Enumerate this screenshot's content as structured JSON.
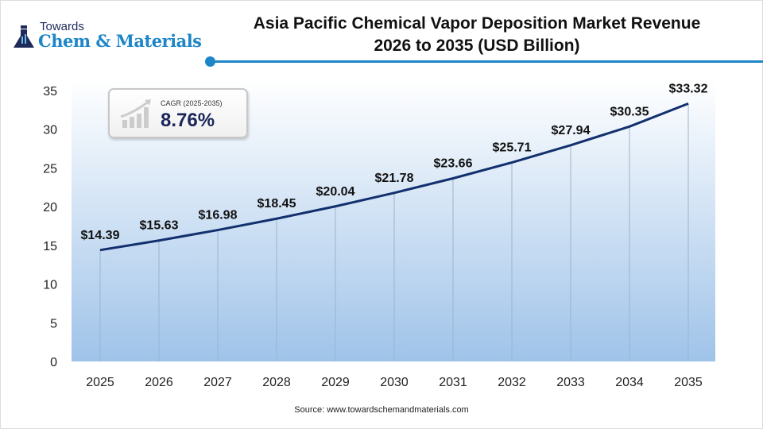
{
  "logo": {
    "top": "Towards",
    "main": "Chem & Materials"
  },
  "title_line1": "Asia Pacific Chemical Vapor Deposition Market Revenue",
  "title_line2": "2026 to 2035 (USD Billion)",
  "cagr": {
    "label": "CAGR (2025-2035)",
    "value": "8.76%"
  },
  "source": "Source: www.towardschemandmaterials.com",
  "colors": {
    "line": "#12306e",
    "accent": "#1d86c8",
    "fill_bottom": "#9fc3e9"
  },
  "chart_data": {
    "type": "line",
    "title": "Asia Pacific Chemical Vapor Deposition Market Revenue 2026 to 2035 (USD Billion)",
    "categories": [
      "2025",
      "2026",
      "2027",
      "2028",
      "2029",
      "2030",
      "2031",
      "2032",
      "2033",
      "2034",
      "2035"
    ],
    "values": [
      14.39,
      15.63,
      16.98,
      18.45,
      20.04,
      21.78,
      23.66,
      25.71,
      27.94,
      30.35,
      33.32
    ],
    "data_labels": [
      "$14.39",
      "$15.63",
      "$16.98",
      "$18.45",
      "$20.04",
      "$21.78",
      "$23.66",
      "$25.71",
      "$27.94",
      "$30.35",
      "$33.32"
    ],
    "yticks": [
      0,
      5,
      10,
      15,
      20,
      25,
      30,
      35
    ],
    "ylim": [
      0,
      35
    ],
    "grid": "vertical",
    "legend": "none"
  }
}
